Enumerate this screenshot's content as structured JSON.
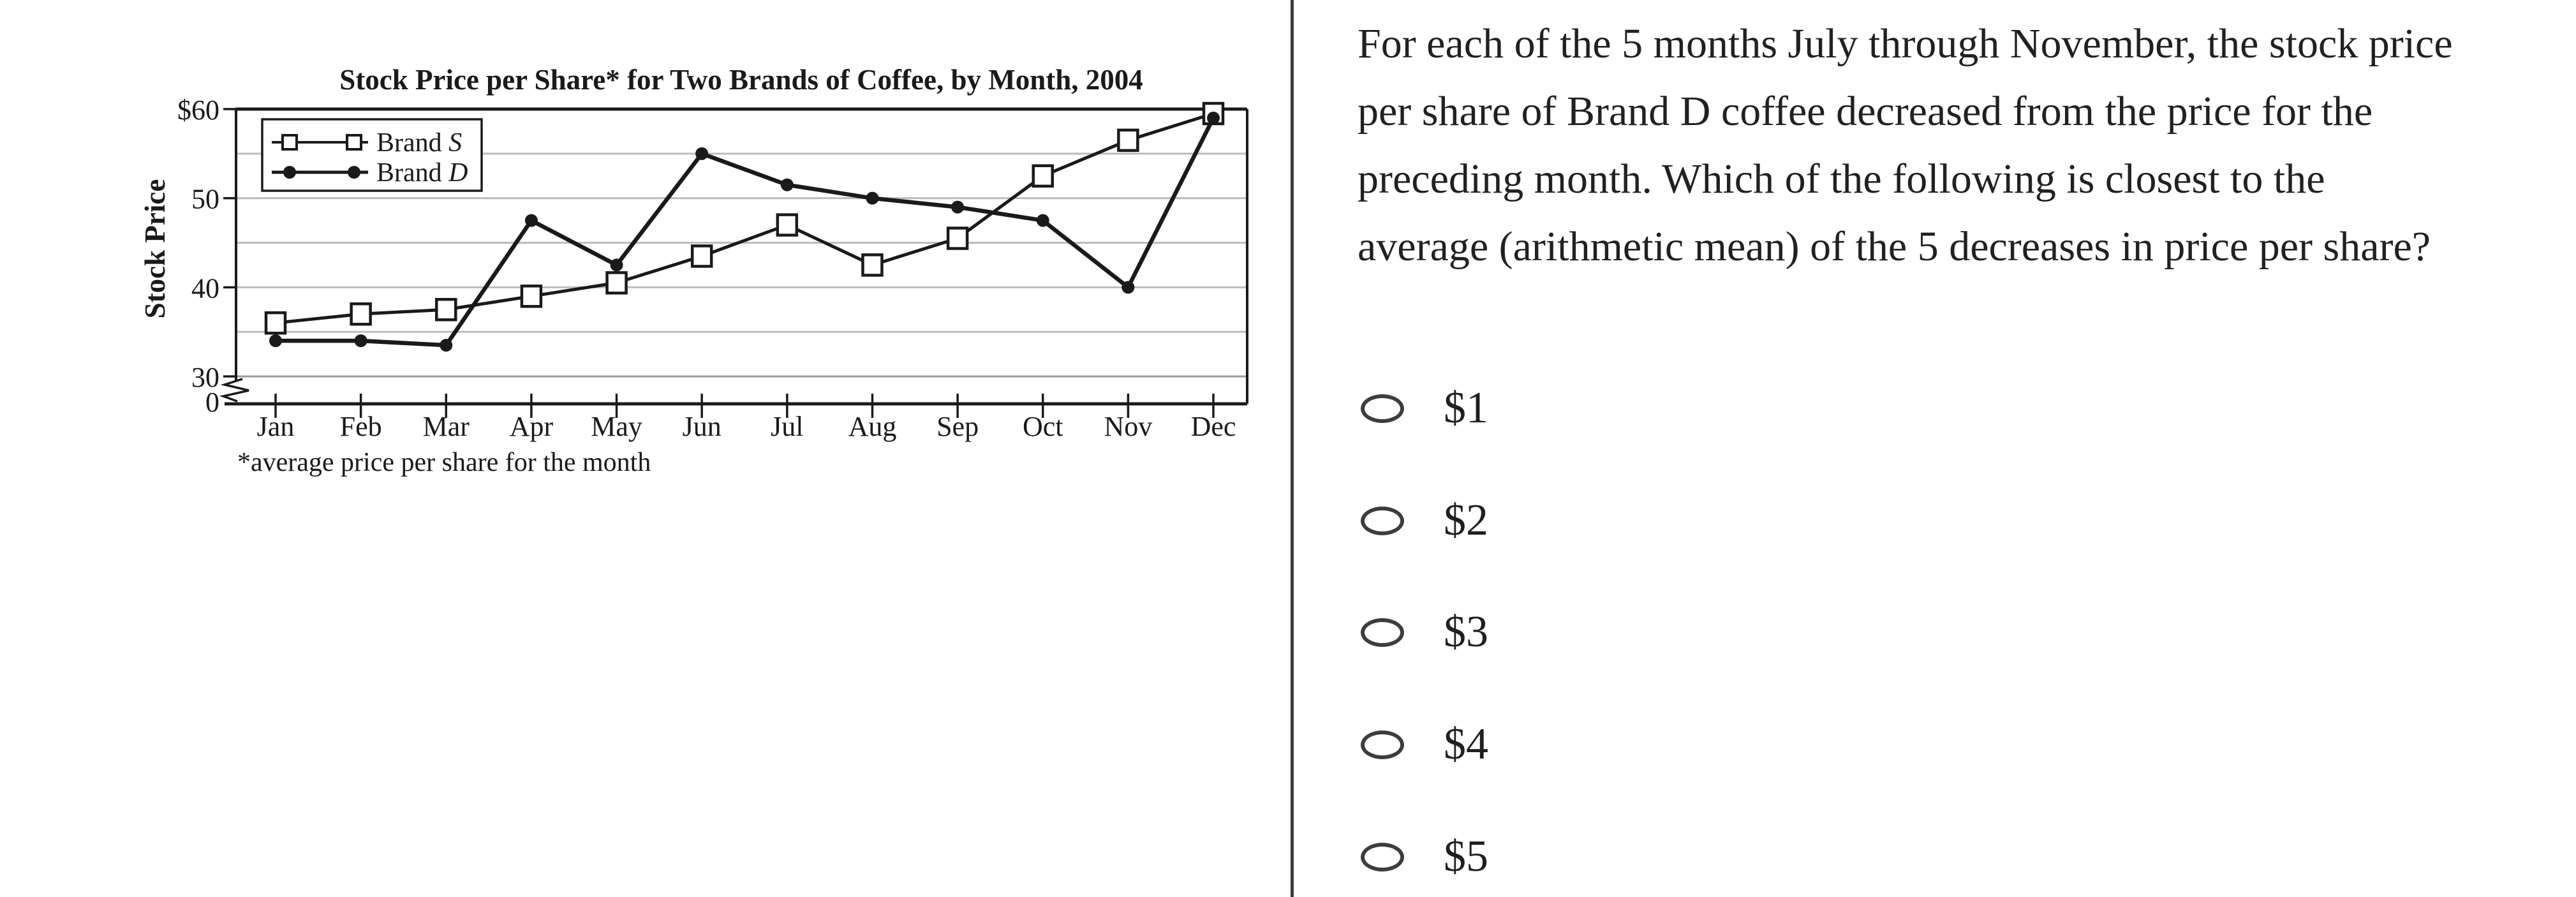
{
  "colors": {
    "ink": "#1a1a1a",
    "gridline": "#bcbcbc",
    "gridline_dark": "#9d9d9d",
    "divider": "#3b3b3b",
    "marker_fill": "#ffffff"
  },
  "chart_data": {
    "type": "line",
    "title": "Stock Price per Share* for Two Brands of Coffee, by Month, 2004",
    "ylabel": "Stock Price",
    "xlabel": "",
    "footnote": "*average price per share for the month",
    "categories": [
      "Jan",
      "Feb",
      "Mar",
      "Apr",
      "May",
      "Jun",
      "Jul",
      "Aug",
      "Sep",
      "Oct",
      "Nov",
      "Dec"
    ],
    "series": [
      {
        "name": "Brand S",
        "marker": "open-square",
        "values": [
          36,
          37,
          37.5,
          39,
          40.5,
          43.5,
          47,
          42.5,
          45.5,
          52.5,
          56.5,
          59.5
        ]
      },
      {
        "name": "Brand D",
        "marker": "filled-circle",
        "values": [
          34,
          34,
          33.5,
          47.5,
          42.5,
          55,
          51.5,
          50,
          49,
          47.5,
          40,
          59
        ]
      }
    ],
    "yticks": [
      {
        "label": "$60",
        "value": 60
      },
      {
        "label": "50",
        "value": 50
      },
      {
        "label": "40",
        "value": 40
      },
      {
        "label": "30",
        "value": 30
      },
      {
        "label": "0",
        "value": 0
      }
    ],
    "gridlines_at": [
      30,
      35,
      40,
      45,
      50,
      55,
      60
    ],
    "ylim_display": [
      30,
      60
    ],
    "axis_break": true,
    "legend_position": "top-left",
    "grid": true
  },
  "question": {
    "text": "For each of the 5 months July through November, the stock price per share of Brand D coffee decreased from the price for the preceding month. Which of the following is closest to the average (arithmetic mean) of the 5 decreases in price per share?",
    "options": [
      "$1",
      "$2",
      "$3",
      "$4",
      "$5"
    ]
  }
}
